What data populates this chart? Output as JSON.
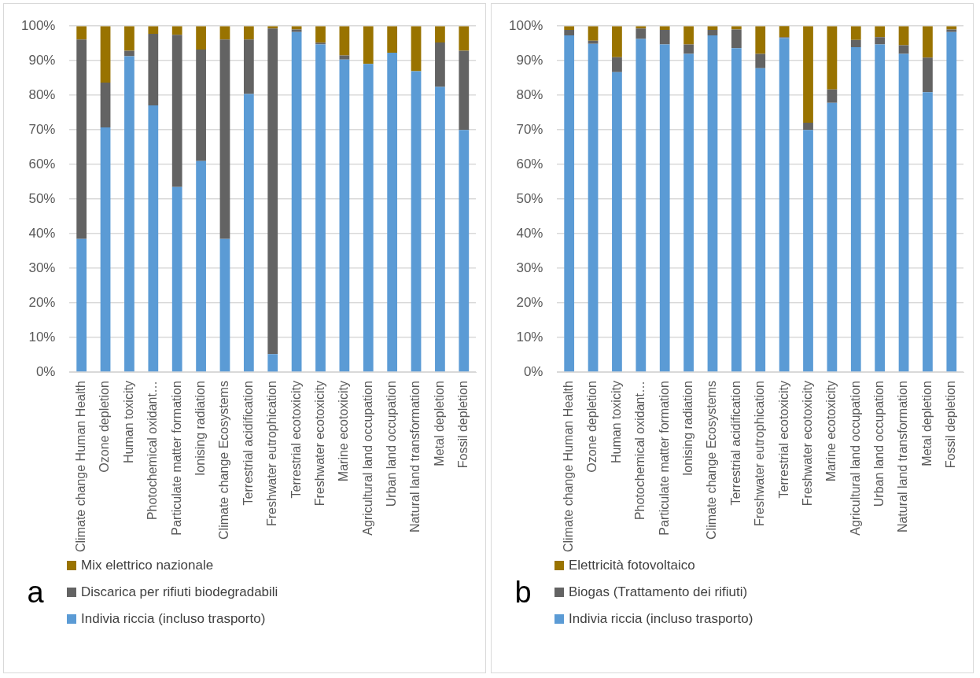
{
  "chart_data": [
    {
      "type": "bar",
      "stacked": true,
      "legend": "bottom",
      "grid": "y",
      "annotations": [
        "a"
      ],
      "categories": [
        "Climate change Human Health",
        "Ozone depletion",
        "Human toxicity",
        "Photochemical oxidant…",
        "Particulate matter formation",
        "Ionising radiation",
        "Climate change Ecosystems",
        "Terrestrial acidification",
        "Freshwater eutrophication",
        "Terrestrial ecotoxicity",
        "Freshwater ecotoxicity",
        "Marine ecotoxicity",
        "Agricultural land occupation",
        "Urban land occupation",
        "Natural land transformation",
        "Metal depletion",
        "Fossil depletion"
      ],
      "ylim": [
        0,
        100
      ],
      "yticks": [
        {
          "value": 0,
          "label": "0%"
        },
        {
          "value": 10,
          "label": "10%"
        },
        {
          "value": 20,
          "label": "20%"
        },
        {
          "value": 30,
          "label": "30%"
        },
        {
          "value": 40,
          "label": "40%"
        },
        {
          "value": 50,
          "label": "50%"
        },
        {
          "value": 60,
          "label": "60%"
        },
        {
          "value": 70,
          "label": "70%"
        },
        {
          "value": 80,
          "label": "80%"
        },
        {
          "value": 90,
          "label": "90%"
        },
        {
          "value": 100,
          "label": "100%"
        }
      ],
      "series": [
        {
          "name": "Indivia riccia (incluso trasporto)",
          "color": "#5b9bd5",
          "values": [
            38.5,
            70.7,
            91.3,
            77.1,
            53.5,
            61,
            38.5,
            80.4,
            5.2,
            98.3,
            94.7,
            90.3,
            89.1,
            92.3,
            87,
            82.4,
            70
          ]
        },
        {
          "name": "Discarica per rifiuti biodegradabili",
          "color": "#636363",
          "values": [
            57.6,
            13,
            1.6,
            20.7,
            44,
            32.2,
            57.6,
            15.7,
            94.1,
            0.7,
            0.5,
            1.2,
            0,
            0,
            0,
            12.9,
            22.9
          ]
        },
        {
          "name": "Mix elettrico nazionale",
          "color": "#997300",
          "values": [
            3.9,
            16.3,
            7.1,
            2.2,
            2.5,
            6.8,
            3.9,
            3.9,
            0.7,
            1,
            4.8,
            8.5,
            10.9,
            7.7,
            13,
            4.7,
            7.1
          ]
        }
      ]
    },
    {
      "type": "bar",
      "stacked": true,
      "legend": "bottom",
      "grid": "y",
      "annotations": [
        "b"
      ],
      "categories": [
        "Climate change Human Health",
        "Ozone depletion",
        "Human toxicity",
        "Photochemical oxidant…",
        "Particulate matter formation",
        "Ionising radiation",
        "Climate change Ecosystems",
        "Terrestrial acidification",
        "Freshwater eutrophication",
        "Terrestrial ecotoxicity",
        "Freshwater ecotoxicity",
        "Marine ecotoxicity",
        "Agricultural land occupation",
        "Urban land occupation",
        "Natural land transformation",
        "Metal depletion",
        "Fossil depletion"
      ],
      "ylim": [
        0,
        100
      ],
      "yticks": [
        {
          "value": 0,
          "label": "0%"
        },
        {
          "value": 10,
          "label": "10%"
        },
        {
          "value": 20,
          "label": "20%"
        },
        {
          "value": 30,
          "label": "30%"
        },
        {
          "value": 40,
          "label": "40%"
        },
        {
          "value": 50,
          "label": "50%"
        },
        {
          "value": 60,
          "label": "60%"
        },
        {
          "value": 70,
          "label": "70%"
        },
        {
          "value": 80,
          "label": "80%"
        },
        {
          "value": 90,
          "label": "90%"
        },
        {
          "value": 100,
          "label": "100%"
        }
      ],
      "series": [
        {
          "name": "Indivia riccia (incluso trasporto)",
          "color": "#5b9bd5",
          "values": [
            97.3,
            94.9,
            86.7,
            96.3,
            94.7,
            92,
            97.3,
            93.6,
            87.8,
            96.5,
            70,
            77.8,
            93.9,
            94.7,
            92,
            80.9,
            98.3
          ]
        },
        {
          "name": "Biogas (Trattamento dei rifiuti)",
          "color": "#636363",
          "values": [
            1.6,
            0.9,
            4.3,
            3,
            4.2,
            2.7,
            1.6,
            5.4,
            4.2,
            0.3,
            2.1,
            3.9,
            2.1,
            2.1,
            2.5,
            10,
            0.7
          ]
        },
        {
          "name": "Elettricità fotovoltaico",
          "color": "#997300",
          "values": [
            1.1,
            4.2,
            9,
            0.7,
            1.1,
            5.3,
            1.1,
            1,
            8,
            3.3,
            27.9,
            18.3,
            4,
            3.2,
            5.5,
            9.1,
            1
          ]
        }
      ]
    }
  ]
}
